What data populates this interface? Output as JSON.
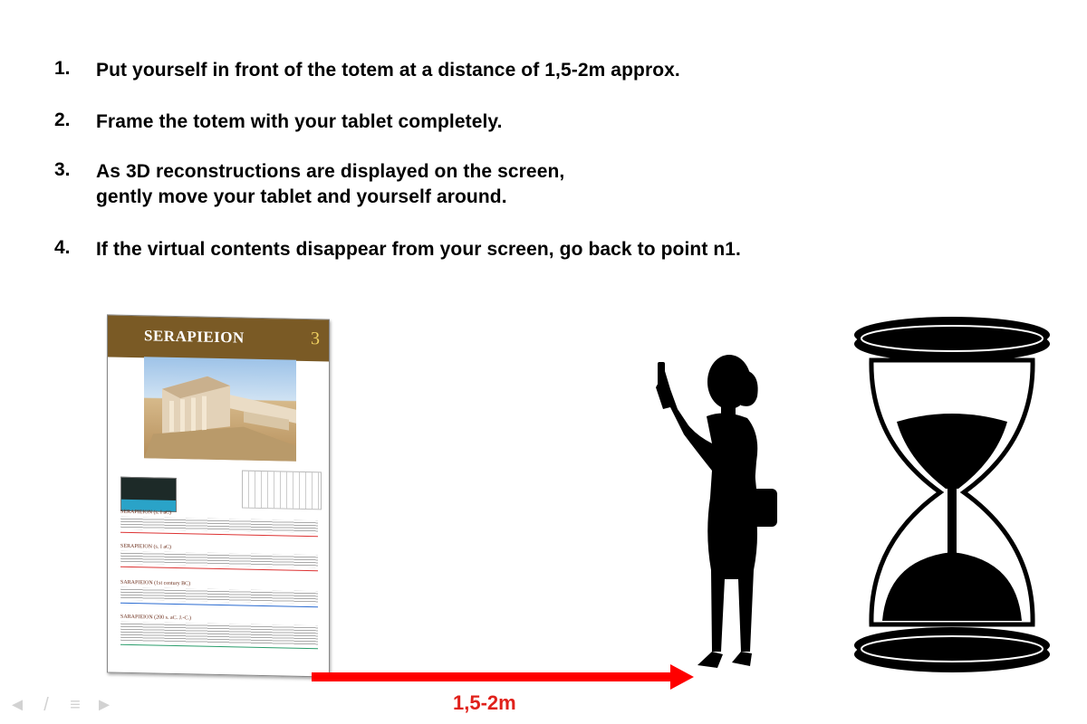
{
  "steps": [
    {
      "number": "1.",
      "lines": [
        "Put yourself in front of the totem at a distance of 1,5-2m approx."
      ]
    },
    {
      "number": "2.",
      "lines": [
        "Frame the totem with your tablet completely."
      ]
    },
    {
      "number": "3.",
      "lines": [
        "As 3D reconstructions are displayed on the screen,",
        "gently move your tablet and yourself around."
      ]
    },
    {
      "number": "4.",
      "lines": [
        "If the virtual contents disappear from your screen, go back to point n1."
      ]
    }
  ],
  "totem": {
    "title": "SERAPIEION",
    "number": "3",
    "sections": [
      {
        "title": "SERAPIEION (s. I aC)"
      },
      {
        "title": "SERAPIEION (s. I aC)"
      },
      {
        "title": "SARAPIEION (1st century BC)"
      },
      {
        "title": "SARAPIEION (200 s. aC. J.-C.)"
      }
    ]
  },
  "distance_label": "1,5-2m",
  "nav_icons": [
    "arrow-left-icon",
    "pen-icon",
    "menu-icon",
    "arrow-right-icon"
  ],
  "colors": {
    "arrow": "#ff0000",
    "distance_text": "#e0211b",
    "totem_header": "#7a5a25"
  }
}
